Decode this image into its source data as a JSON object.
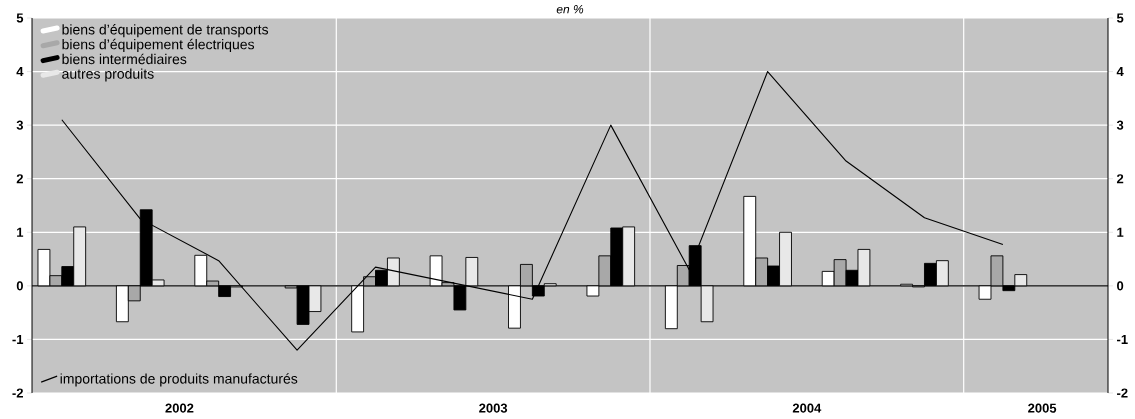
{
  "chart_data": {
    "type": "bar",
    "title": "en %",
    "x": [
      2002.125,
      2002.375,
      2002.625,
      2002.875,
      2003.125,
      2003.375,
      2003.625,
      2003.875,
      2004.125,
      2004.375,
      2004.625,
      2004.875,
      2005.125
    ],
    "series": [
      {
        "name": "biens d’équipement de transports",
        "color": "#ffffff",
        "values": [
          0.68,
          -0.67,
          0.57,
          null,
          -0.86,
          0.56,
          -0.79,
          -0.19,
          -0.8,
          1.67,
          0.27,
          0.03,
          -0.25
        ]
      },
      {
        "name": "biens d’équipement électriques",
        "color": "#a8a8a8",
        "values": [
          0.19,
          -0.28,
          0.09,
          -0.04,
          0.17,
          0.06,
          0.4,
          0.56,
          0.38,
          0.52,
          0.49,
          -0.02,
          0.56
        ]
      },
      {
        "name": "biens intermédiaires",
        "color": "#000000",
        "values": [
          0.36,
          1.42,
          -0.2,
          -0.72,
          0.29,
          -0.45,
          -0.19,
          1.08,
          0.75,
          0.37,
          0.29,
          0.42,
          -0.09
        ]
      },
      {
        "name": "autres produits",
        "color": "#e8e8e8",
        "values": [
          1.1,
          0.11,
          -0.02,
          -0.48,
          0.52,
          0.53,
          0.04,
          1.1,
          -0.67,
          1.0,
          0.68,
          0.47,
          0.21
        ]
      },
      {
        "name": "importations de produits manufacturés",
        "type": "line",
        "color": "#000000",
        "values": [
          3.1,
          1.25,
          0.47,
          -1.2,
          0.35,
          0.05,
          -0.25,
          3.0,
          0.3,
          4.0,
          2.33,
          1.27,
          0.77
        ]
      }
    ],
    "xlim": [
      2002.03,
      2005.46
    ],
    "xticks": [
      {
        "value": 2002.5,
        "label": "2002"
      },
      {
        "value": 2003.5,
        "label": "2003"
      },
      {
        "value": 2004.5,
        "label": "2004"
      },
      {
        "value": 2005.25,
        "label": "2005"
      }
    ],
    "ylim": [
      -2,
      5
    ],
    "yticks": [
      -2,
      -1,
      0,
      1,
      2,
      3,
      4,
      5
    ],
    "y2lim": [
      -2,
      5
    ],
    "y2ticks": [
      -2,
      -1,
      0,
      1,
      2,
      3,
      4,
      5
    ],
    "ref_lines": [
      {
        "axis": "x",
        "value": 2003,
        "color": "#ffffff"
      },
      {
        "axis": "x",
        "value": 2004,
        "color": "#ffffff"
      },
      {
        "axis": "x",
        "value": 2005,
        "color": "#ffffff"
      },
      {
        "axis": "y",
        "value": 0,
        "color": "#000000"
      }
    ],
    "grid": "y",
    "legend": "left",
    "marker": "none",
    "line_style": "solid"
  }
}
